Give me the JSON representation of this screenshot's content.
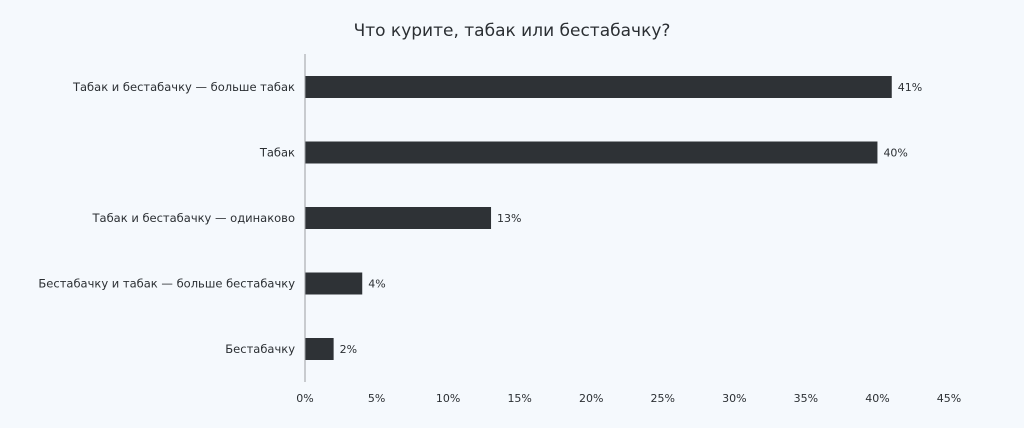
{
  "chart_data": {
    "type": "bar",
    "orientation": "horizontal",
    "title": "Что курите, табак или бестабачку?",
    "categories": [
      "Табак и бестабачку — больше табак",
      "Табак",
      "Табак и бестабачку — одинаково",
      "Бестабачку и табак — больше бестабачку",
      "Бестабачку"
    ],
    "values": [
      41,
      40,
      13,
      4,
      2
    ],
    "value_labels": [
      "41%",
      "40%",
      "13%",
      "4%",
      "2%"
    ],
    "xlim": [
      0,
      45
    ],
    "xticks": [
      0,
      5,
      10,
      15,
      20,
      25,
      30,
      35,
      40,
      45
    ],
    "xtick_labels": [
      "0%",
      "5%",
      "10%",
      "15%",
      "20%",
      "25%",
      "30%",
      "35%",
      "40%",
      "45%"
    ],
    "xlabel": "",
    "ylabel": "",
    "grid": false,
    "bar_color": "#2e3236",
    "background": "#f5f9fd"
  }
}
